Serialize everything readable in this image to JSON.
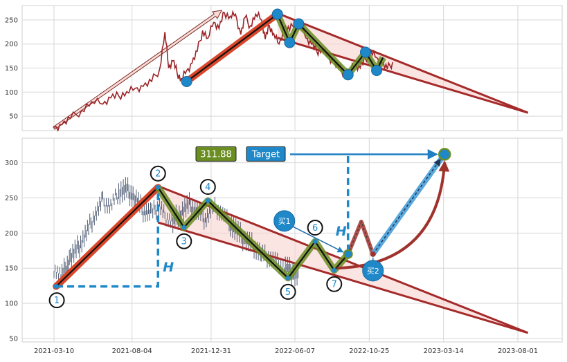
{
  "chart_data": [
    {
      "type": "line",
      "panel": "top",
      "ylim": [
        20,
        280
      ],
      "yticks": [
        50,
        100,
        150,
        200,
        250
      ],
      "grid": true,
      "series": [
        {
          "color": "#9b2226",
          "x": [
            "2021-03-10",
            "2021-03-25",
            "2021-04-10",
            "2021-05-01",
            "2021-05-20",
            "2021-06-10",
            "2021-06-25",
            "2021-07-10",
            "2021-07-25",
            "2021-08-10",
            "2021-08-25",
            "2021-09-10",
            "2021-09-25",
            "2021-10-05",
            "2021-10-12",
            "2021-10-20",
            "2021-10-28",
            "2021-11-05",
            "2021-11-15",
            "2021-11-25",
            "2021-12-05",
            "2021-12-15",
            "2021-12-25",
            "2022-01-05",
            "2022-01-15",
            "2022-01-25",
            "2022-02-05",
            "2022-02-15",
            "2022-02-25",
            "2022-03-05",
            "2022-03-15",
            "2022-03-25",
            "2022-04-05",
            "2022-04-12",
            "2022-04-20",
            "2022-04-28",
            "2022-05-08",
            "2022-05-18",
            "2022-05-28",
            "2022-06-08",
            "2022-06-18",
            "2022-06-28",
            "2022-07-08",
            "2022-07-18",
            "2022-07-28",
            "2022-08-08",
            "2022-08-18",
            "2022-08-28",
            "2022-09-08",
            "2022-09-18",
            "2022-09-28",
            "2022-10-08",
            "2022-10-18",
            "2022-10-28",
            "2022-11-08",
            "2022-11-18",
            "2022-11-28",
            "2022-12-08"
          ],
          "values": [
            27,
            32,
            45,
            62,
            80,
            75,
            88,
            92,
            101,
            108,
            112,
            122,
            148,
            225,
            150,
            165,
            140,
            128,
            145,
            160,
            185,
            228,
            212,
            245,
            232,
            265,
            258,
            262,
            220,
            255,
            238,
            262,
            250,
            210,
            238,
            222,
            200,
            235,
            228,
            248,
            238,
            212,
            200,
            185,
            190,
            175,
            165,
            150,
            140,
            145,
            155,
            150,
            168,
            185,
            172,
            160,
            148,
            162
          ]
        }
      ],
      "pattern_points": [
        {
          "x": "2021-11-15",
          "y": 122
        },
        {
          "x": "2022-05-05",
          "y": 262
        },
        {
          "x": "2022-05-28",
          "y": 203
        },
        {
          "x": "2022-06-14",
          "y": 242
        },
        {
          "x": "2022-09-15",
          "y": 136
        },
        {
          "x": "2022-10-18",
          "y": 183
        },
        {
          "x": "2022-11-08",
          "y": 145
        }
      ],
      "zigzag": [
        {
          "x": "2022-05-05",
          "y": 262
        },
        {
          "x": "2022-05-28",
          "y": 203
        },
        {
          "x": "2022-06-14",
          "y": 242
        },
        {
          "x": "2022-09-15",
          "y": 136
        },
        {
          "x": "2022-10-18",
          "y": 183
        },
        {
          "x": "2022-11-08",
          "y": 145
        },
        {
          "x": "2022-11-20",
          "y": 172
        }
      ],
      "upper_trendline": [
        {
          "x": "2022-05-05",
          "y": 264
        },
        {
          "x": "2023-08-20",
          "y": 57
        }
      ],
      "lower_trendline": [
        {
          "x": "2022-05-05",
          "y": 213
        },
        {
          "x": "2023-08-20",
          "y": 57
        }
      ],
      "lead_arrow": [
        {
          "x": "2021-03-10",
          "y": 25
        },
        {
          "x": "2022-01-20",
          "y": 270
        }
      ],
      "impulse": [
        {
          "x": "2021-11-15",
          "y": 122
        },
        {
          "x": "2022-05-05",
          "y": 262
        }
      ]
    },
    {
      "type": "candlestick",
      "panel": "bottom",
      "ylim": [
        45,
        335
      ],
      "yticks": [
        50,
        100,
        150,
        200,
        250,
        300
      ],
      "xticks": [
        "2021-03-10",
        "2021-08-04",
        "2021-12-31",
        "2022-06-07",
        "2022-10-25",
        "2023-03-14",
        "2023-08-01"
      ],
      "grid": true,
      "price_path": {
        "x": [
          "2021-03-10",
          "2021-03-25",
          "2021-04-10",
          "2021-04-25",
          "2021-05-10",
          "2021-05-25",
          "2021-06-10",
          "2021-06-25",
          "2021-07-10",
          "2021-07-25",
          "2021-08-10",
          "2021-08-25",
          "2021-09-10",
          "2021-09-25",
          "2021-10-05",
          "2021-10-20",
          "2021-11-05",
          "2021-11-20",
          "2021-12-05",
          "2021-12-20",
          "2022-01-05",
          "2022-01-20",
          "2022-02-05",
          "2022-02-20",
          "2022-03-05",
          "2022-03-20",
          "2022-04-05",
          "2022-04-20",
          "2022-05-05",
          "2022-05-20",
          "2022-06-05",
          "2022-06-15"
        ],
        "values": [
          150,
          138,
          165,
          180,
          200,
          225,
          245,
          238,
          258,
          262,
          250,
          232,
          228,
          240,
          225,
          215,
          230,
          240,
          232,
          220,
          238,
          228,
          215,
          200,
          190,
          182,
          170,
          165,
          158,
          150,
          142,
          140
        ],
        "color": "#2f3e5c"
      },
      "points": [
        {
          "label": "1",
          "x": "2021-03-14",
          "y": 124
        },
        {
          "label": "2",
          "x": "2021-09-22",
          "y": 265
        },
        {
          "label": "3",
          "x": "2021-11-10",
          "y": 208
        },
        {
          "label": "4",
          "x": "2021-12-25",
          "y": 246
        },
        {
          "label": "5",
          "x": "2022-05-25",
          "y": 136
        },
        {
          "label": "6",
          "x": "2022-07-15",
          "y": 188
        },
        {
          "label": "7",
          "x": "2022-08-20",
          "y": 147
        }
      ],
      "zigzag": [
        {
          "x": "2021-09-22",
          "y": 265
        },
        {
          "x": "2021-11-10",
          "y": 208
        },
        {
          "x": "2021-12-25",
          "y": 246
        },
        {
          "x": "2022-05-25",
          "y": 136
        },
        {
          "x": "2022-07-15",
          "y": 188
        },
        {
          "x": "2022-08-20",
          "y": 147
        },
        {
          "x": "2022-09-15",
          "y": 170
        }
      ],
      "impulse": [
        {
          "x": "2021-03-14",
          "y": 124
        },
        {
          "x": "2021-09-22",
          "y": 265
        }
      ],
      "upper_trendline": [
        {
          "x": "2021-09-22",
          "y": 267
        },
        {
          "x": "2023-08-20",
          "y": 58
        }
      ],
      "lower_trendline": [
        {
          "x": "2021-09-22",
          "y": 215
        },
        {
          "x": "2023-08-20",
          "y": 58
        }
      ],
      "projection_wedge": [
        {
          "x": "2022-09-15",
          "y": 170
        },
        {
          "x": "2022-10-10",
          "y": 216
        },
        {
          "x": "2022-11-01",
          "y": 170
        }
      ],
      "buy_points": [
        {
          "label": "买1",
          "x": "2022-09-15",
          "y": 170
        },
        {
          "label": "买2",
          "x": "2022-11-01",
          "y": 170
        }
      ],
      "target_arrow_from": {
        "x": "2022-11-01",
        "y": 170
      },
      "target_curve_from": {
        "x": "2022-08-25",
        "y": 150
      },
      "target": {
        "label": "Target",
        "value": "311.88",
        "x": "2023-03-16",
        "y": 312
      },
      "height_marker": {
        "label": "H"
      }
    }
  ]
}
